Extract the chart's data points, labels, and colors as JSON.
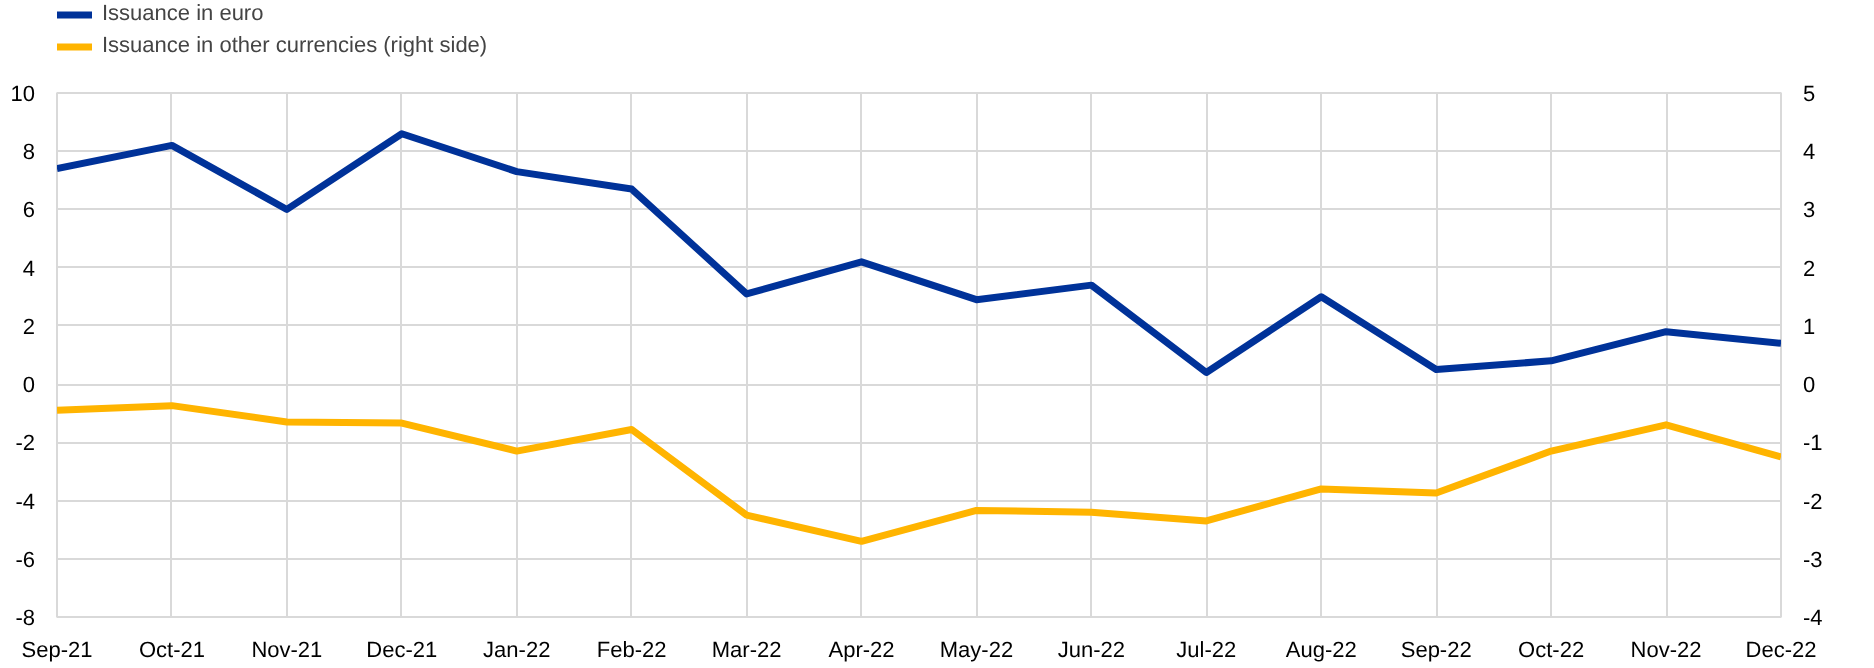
{
  "chart_data": {
    "type": "line",
    "categories": [
      "Sep-21",
      "Oct-21",
      "Nov-21",
      "Dec-21",
      "Jan-22",
      "Feb-22",
      "Mar-22",
      "Apr-22",
      "May-22",
      "Jun-22",
      "Jul-22",
      "Aug-22",
      "Sep-22",
      "Oct-22",
      "Nov-22",
      "Dec-22"
    ],
    "series": [
      {
        "name": "Issuance in euro",
        "color": "#003299",
        "values": [
          7.4,
          8.2,
          6.0,
          8.6,
          7.3,
          6.7,
          3.1,
          4.2,
          2.9,
          3.4,
          0.4,
          3.0,
          0.5,
          0.8,
          1.8,
          1.4
        ]
      },
      {
        "name": "Issuance in other currencies (right side)",
        "color": "#ffb400",
        "axis": "y2",
        "values": [
          -0.45,
          -0.37,
          -0.65,
          -0.67,
          -1.15,
          -0.78,
          -2.25,
          -2.7,
          -2.17,
          -2.2,
          -2.35,
          -1.8,
          -1.87,
          -1.15,
          -0.7,
          -1.25
        ]
      }
    ],
    "ylim": [
      -8,
      10
    ],
    "yticks": [
      -8,
      -6,
      -4,
      -2,
      0,
      2,
      4,
      6,
      8,
      10
    ],
    "y2lim": [
      -4,
      5
    ],
    "y2ticks": [
      -4,
      -3,
      -2,
      -1,
      0,
      1,
      2,
      3,
      4,
      5
    ],
    "grid": true,
    "legend": "top left",
    "line_style": "solid"
  }
}
